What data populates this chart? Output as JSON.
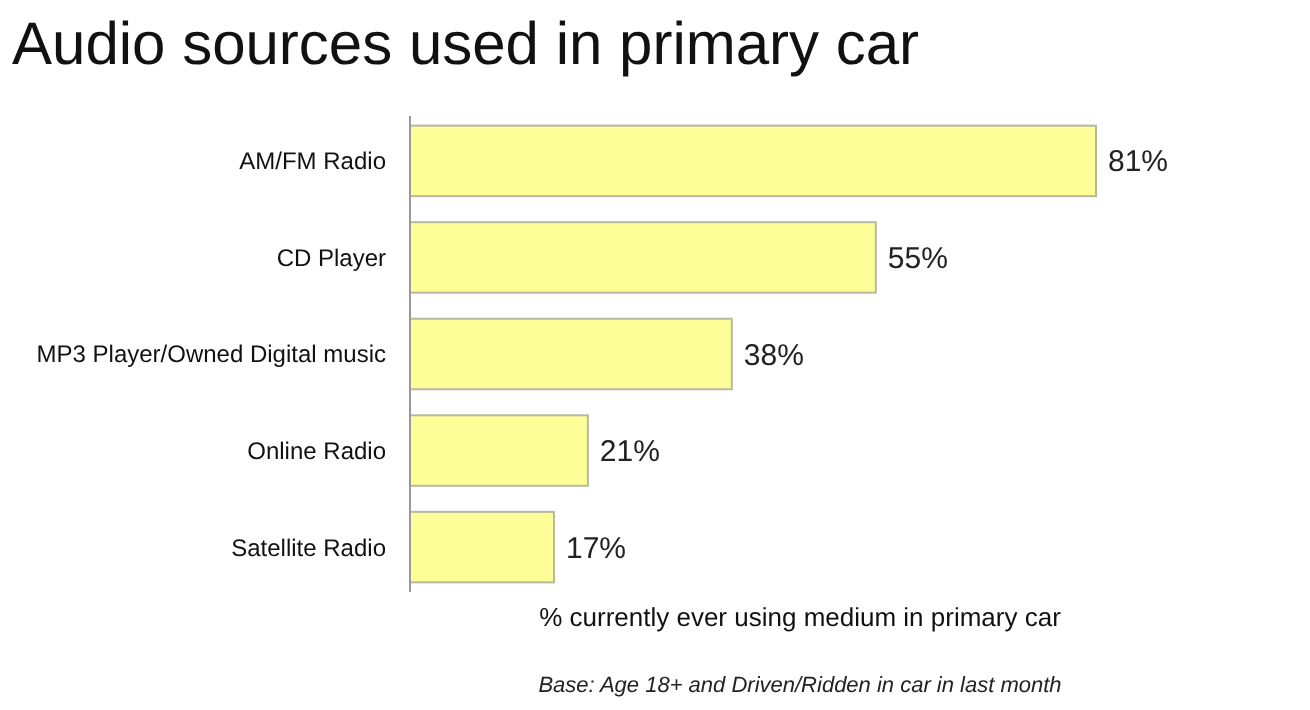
{
  "chart_data": {
    "type": "bar",
    "orientation": "horizontal",
    "title": "Audio sources used in primary car",
    "categories": [
      "AM/FM Radio",
      "CD Player",
      "MP3 Player/Owned Digital music",
      "Online Radio",
      "Satellite Radio"
    ],
    "values": [
      81,
      55,
      38,
      21,
      17
    ],
    "value_labels": [
      "81%",
      "55%",
      "38%",
      "21%",
      "17%"
    ],
    "color": "#ffff99",
    "xlabel": "% currently ever using medium in primary car",
    "annotations": [
      "Base: Age 18+ and Driven/Ridden in car in last month"
    ]
  }
}
